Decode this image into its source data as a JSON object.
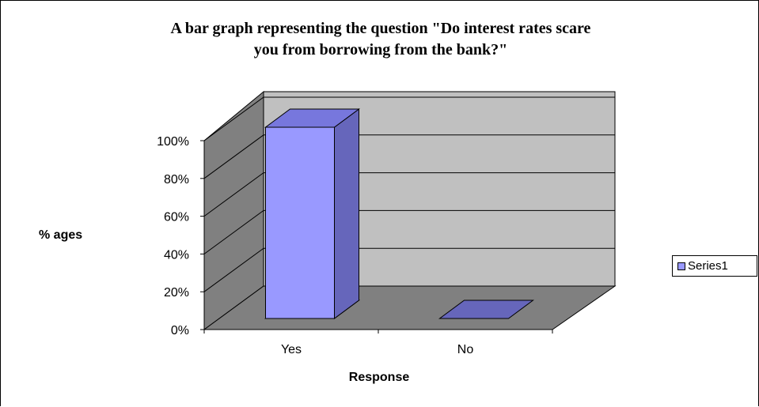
{
  "chart_data": {
    "type": "bar",
    "title": "A bar graph representing the question \"Do  interest rates scare\nyou from borrowing from the  bank?\"",
    "xlabel": "Response",
    "ylabel": "% ages",
    "categories": [
      "Yes",
      "No"
    ],
    "series": [
      {
        "name": "Series1",
        "values": [
          100,
          0
        ]
      }
    ],
    "y_ticks": [
      "0%",
      "20%",
      "40%",
      "60%",
      "80%",
      "100%"
    ],
    "ylim": [
      0,
      100
    ],
    "grid": true,
    "legend_position": "right",
    "colors": {
      "bar_front": "#9999ff",
      "bar_top": "#7777dd",
      "bar_side": "#6666bb",
      "back_wall": "#c0c0c0",
      "side_wall": "#808080",
      "floor": "#808080"
    }
  }
}
